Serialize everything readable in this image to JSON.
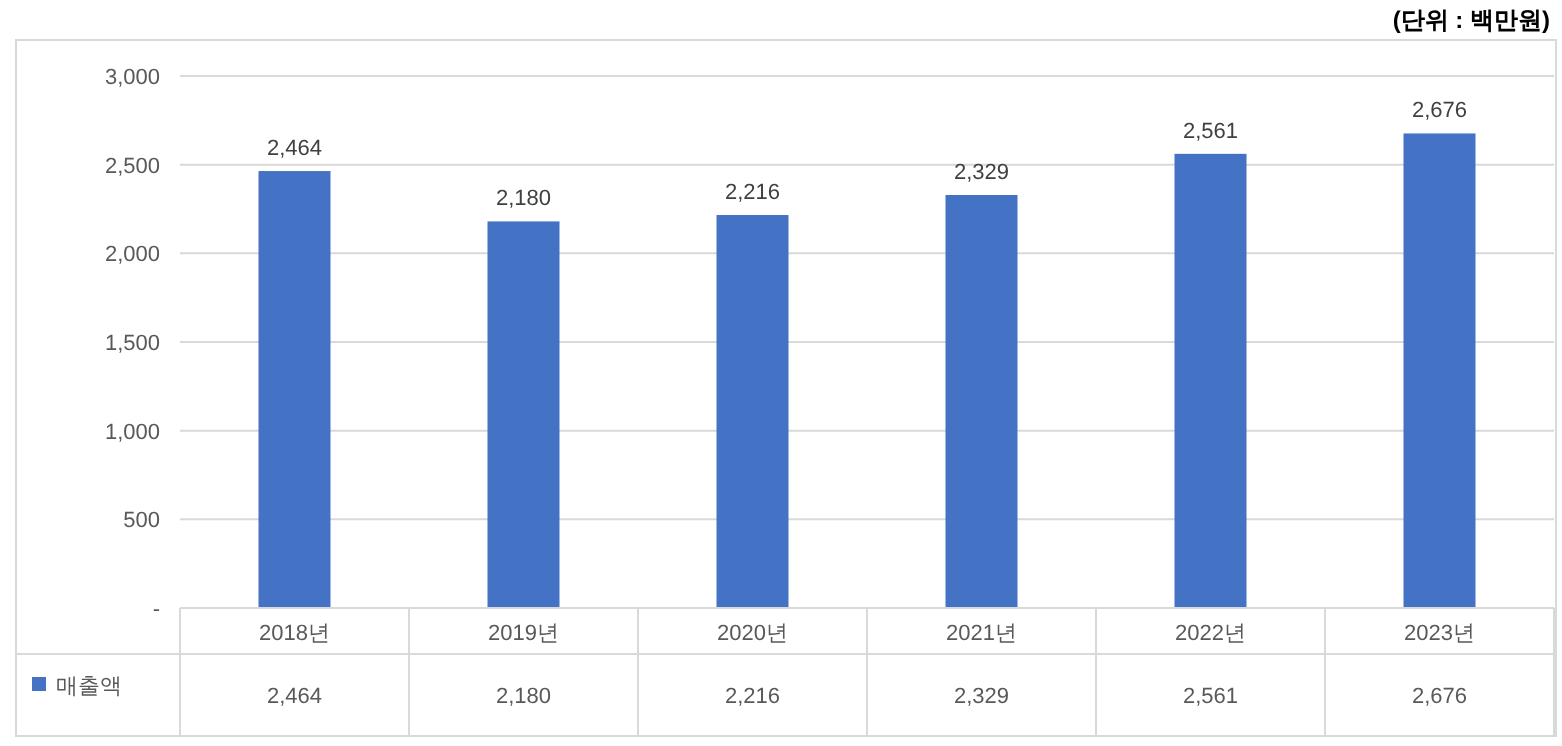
{
  "chart_data": {
    "type": "bar",
    "annotations": [
      "(단위 : 백만원)"
    ],
    "categories": [
      "2018년",
      "2019년",
      "2020년",
      "2021년",
      "2022년",
      "2023년"
    ],
    "series": [
      {
        "name": "매출액",
        "color": "#4472c4",
        "values": [
          2464,
          2180,
          2216,
          2329,
          2561,
          2676
        ],
        "value_labels": [
          "2,464",
          "2,180",
          "2,216",
          "2,329",
          "2,561",
          "2,676"
        ]
      }
    ],
    "ylim": [
      0,
      3000
    ],
    "yticks": [
      {
        "value": 0,
        "label": "-"
      },
      {
        "value": 500,
        "label": "500"
      },
      {
        "value": 1000,
        "label": "1,000"
      },
      {
        "value": 1500,
        "label": "1,500"
      },
      {
        "value": 2000,
        "label": "2,000"
      },
      {
        "value": 2500,
        "label": "2,500"
      },
      {
        "value": 3000,
        "label": "3,000"
      }
    ],
    "grid": "y",
    "legend": "bottom"
  }
}
